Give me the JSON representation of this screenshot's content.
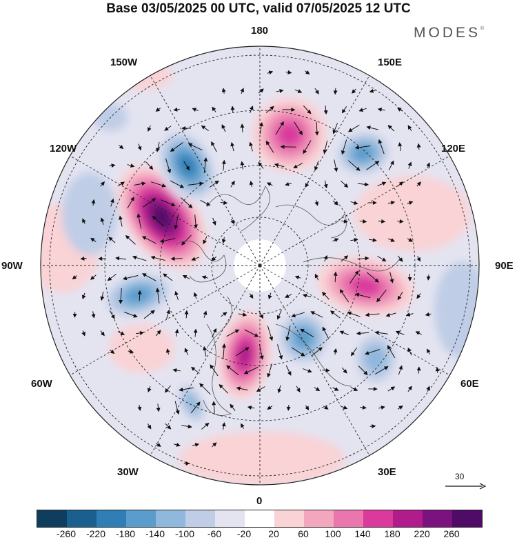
{
  "title": "Base 03/05/2025 00 UTC, valid 07/05/2025 12 UTC",
  "brand": {
    "text": "MODES",
    "mark": "©"
  },
  "longitude_labels": {
    "top": "180",
    "top_left": "150W",
    "top_right": "150E",
    "upper_left": "120W",
    "upper_right": "120E",
    "left": "90W",
    "right": "90E",
    "lower_left": "60W",
    "lower_right": "60E",
    "bottom_left": "30W",
    "bottom_right": "30E",
    "bottom": "0"
  },
  "reference_vector": {
    "label": "30",
    "icon": "arrow-right-icon"
  },
  "colorbar": {
    "colors": [
      "#0f3d5e",
      "#1a5f8e",
      "#2f7fb6",
      "#5a9ccc",
      "#8fb8dc",
      "#bfcde6",
      "#e4e4f1",
      "#ffffff",
      "#f9d3d6",
      "#f3a7bf",
      "#ea76ae",
      "#d93a9c",
      "#b01c8c",
      "#7c127e",
      "#4f0b66"
    ],
    "ticks": [
      "-260",
      "-220",
      "-180",
      "-140",
      "-100",
      "-60",
      "-20",
      "20",
      "60",
      "100",
      "140",
      "180",
      "220",
      "260"
    ]
  },
  "anomaly_centers": [
    {
      "sign": "positive",
      "level": 260,
      "location": "over western Canada"
    },
    {
      "sign": "positive",
      "level": 180,
      "location": "over northwest Europe"
    },
    {
      "sign": "positive",
      "level": 140,
      "location": "over western Siberia"
    },
    {
      "sign": "positive",
      "level": 140,
      "location": "over the Bering Sea"
    },
    {
      "sign": "negative",
      "level": -180,
      "location": "over the Gulf of Alaska"
    },
    {
      "sign": "negative",
      "level": -140,
      "location": "over eastern Canada"
    },
    {
      "sign": "negative",
      "level": -140,
      "location": "over Scandinavia"
    },
    {
      "sign": "negative",
      "level": -140,
      "location": "over eastern Siberia"
    },
    {
      "sign": "negative",
      "level": -100,
      "location": "over the eastern Atlantic"
    },
    {
      "sign": "negative",
      "level": -100,
      "location": "over the Caspian region"
    }
  ]
}
